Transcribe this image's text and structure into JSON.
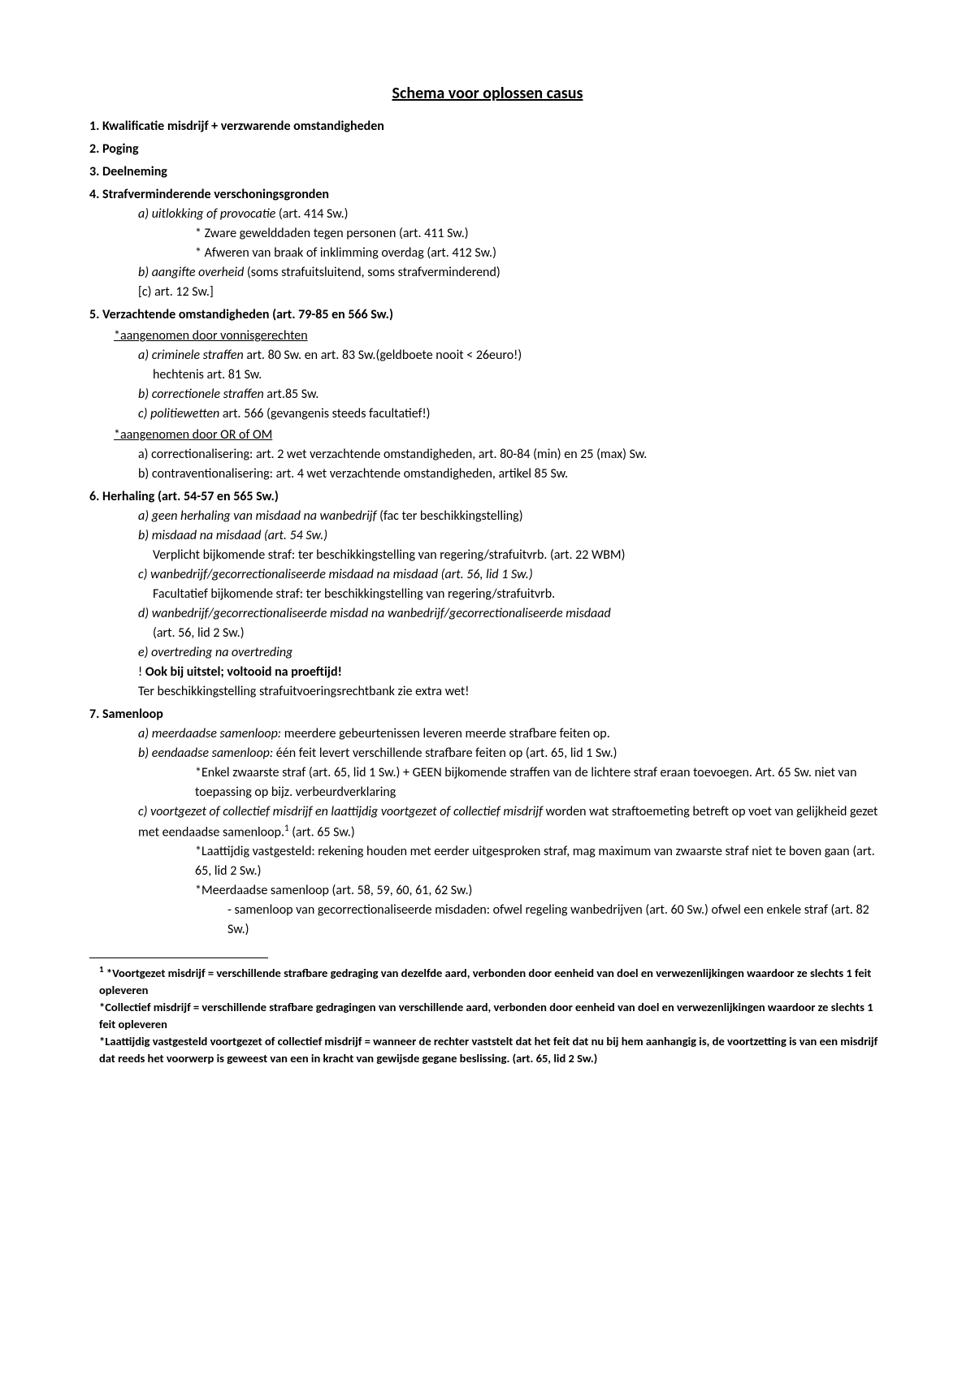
{
  "title": "Schema voor oplossen casus",
  "items": {
    "n1": "1. Kwalificatie misdrijf + verzwarende omstandigheden",
    "n2": "2. Poging",
    "n3": "3. Deelneming",
    "n4": "4. Strafverminderende verschoningsgronden",
    "n4a_it": "a) uitlokking of provocatie",
    "n4a_tx": " (art. 414 Sw.)",
    "n4a_s1": "* Zware gewelddaden tegen personen (art. 411 Sw.)",
    "n4a_s2": "* Afweren van braak of inklimming overdag (art. 412 Sw.)",
    "n4b_it": "b) aangifte overheid",
    "n4b_tx": " (soms strafuitsluitend, soms strafverminderend)",
    "n4c": "[c) art. 12 Sw.]",
    "n5": "5. Verzachtende omstandigheden (art. 79-85 en 566 Sw.)",
    "n5_sub1": "*aangenomen door vonnisgerechten",
    "n5a_it": "a) criminele straffen",
    "n5a_tx": " art. 80 Sw. en art. 83 Sw.(geldboete nooit < 26euro!)",
    "n5a_l2": "hechtenis art. 81 Sw.",
    "n5b_it": "b) correctionele straffen",
    "n5b_tx": " art.85 Sw.",
    "n5c_it": "c) politiewetten",
    "n5c_tx": " art. 566 (gevangenis steeds facultatief!)",
    "n5_sub2": "*aangenomen door OR of OM",
    "n5d": "a) correctionalisering: art. 2 wet verzachtende omstandigheden, art. 80-84 (min) en 25 (max) Sw.",
    "n5e": "b) contraventionalisering: art. 4 wet verzachtende omstandigheden, artikel 85 Sw.",
    "n6": "6. Herhaling (art. 54-57 en 565 Sw.)",
    "n6a_it": "a) geen herhaling van misdaad na wanbedrijf",
    "n6a_tx": " (fac ter beschikkingstelling)",
    "n6b_it": "b) misdaad na misdaad (art. 54 Sw.)",
    "n6b_l2": "Verplicht bijkomende straf: ter beschikkingstelling van regering/strafuitvrb. (art. 22 WBM)",
    "n6c_it": "c) wanbedrijf/gecorrectionaliseerde misdaad na misdaad (art. 56, lid 1 Sw.)",
    "n6c_l2": "Facultatief bijkomende straf: ter beschikkingstelling van regering/strafuitvrb.",
    "n6d_it": "d) wanbedrijf/gecorrectionaliseerde misdad na wanbedrijf/gecorrectionaliseerde misdaad",
    "n6d_l2": "(art. 56, lid 2 Sw.)",
    "n6e_it": "e) overtreding na overtreding",
    "n6_ex1a": "! ",
    "n6_ex1b": "Ook bij uitstel; voltooid na proeftijd!",
    "n6_ex2": "Ter beschikkingstelling strafuitvoeringsrechtbank zie extra wet!",
    "n7": "7. Samenloop",
    "n7a_it": "a) meerdaadse samenloop:",
    "n7a_tx": " meerdere gebeurtenissen leveren meerde strafbare feiten op.",
    "n7b_it": "b) eendaadse samenloop:",
    "n7b_tx": " één feit levert verschillende strafbare feiten op (art. 65, lid 1 Sw.)",
    "n7b_s1": "*Enkel zwaarste straf (art. 65, lid 1 Sw.) + GEEN bijkomende straffen van de lichtere straf eraan toevoegen. Art. 65 Sw. niet van toepassing op bijz. verbeurdverklaring",
    "n7c_it": "c) voortgezet of collectief misdrijf en laattijdig voortgezet of collectief misdrijf",
    "n7c_tx1": " worden wat straftoemeting betreft op voet van gelijkheid gezet met eendaadse samenloop.",
    "n7c_tx2": " (art. 65 Sw.)",
    "n7c_s1": "*Laattijdig vastgesteld: rekening houden met eerder uitgesproken straf, mag maximum van zwaarste straf niet te boven gaan (art. 65, lid 2 Sw.)",
    "n7c_s2": "*Meerdaadse samenloop (art. 58, 59, 60, 61, 62 Sw.)",
    "n7c_s2a": "- samenloop van gecorrectionaliseerde misdaden: ofwel regeling wanbedrijven (art. 60 Sw.) ofwel een enkele straf (art. 82 Sw.)"
  },
  "footnotes": {
    "f1": " *Voortgezet misdrijf = verschillende strafbare gedraging van dezelfde aard, verbonden door eenheid van doel en verwezenlijkingen waardoor ze slechts 1 feit opleveren",
    "f2": "*Collectief misdrijf = verschillende strafbare gedragingen van verschillende aard, verbonden door eenheid van doel en verwezenlijkingen waardoor ze slechts 1 feit opleveren",
    "f3": "*Laattijdig vastgesteld voortgezet of collectief misdrijf = wanneer de rechter vaststelt dat het feit dat nu bij hem aanhangig is, de voortzetting is van een misdrijf dat reeds het voorwerp is geweest van een in kracht van gewijsde gegane beslissing. (art. 65, lid 2 Sw.)"
  }
}
